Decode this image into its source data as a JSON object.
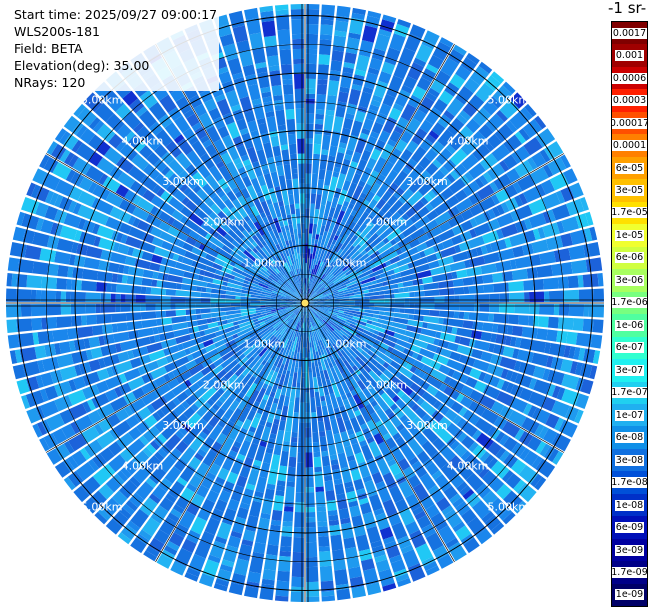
{
  "info": {
    "start_time": "Start time: 2025/09/27 09:00:17",
    "instrument": "WLS200s-181",
    "field": "Field: BETA",
    "elevation": "Elevation(deg): 35.00",
    "nrays": "NRays: 120"
  },
  "colorbar": {
    "unit_fragment": "-1 sr-",
    "labels": [
      "0.0017",
      "0.001",
      "0.0006",
      "0.0003",
      "0.00017",
      "0.0001",
      "6e-05",
      "3e-05",
      "1.7e-05",
      "1e-05",
      "6e-06",
      "3e-06",
      "1.7e-06",
      "1e-06",
      "6e-07",
      "3e-07",
      "1.7e-07",
      "1e-07",
      "6e-08",
      "3e-08",
      "1.7e-08",
      "1e-08",
      "6e-09",
      "3e-09",
      "1.7e-09",
      "1e-09"
    ],
    "colors": [
      "#800000",
      "#a00000",
      "#cc0000",
      "#ff2000",
      "#ff5000",
      "#ff8000",
      "#ffa000",
      "#ffc000",
      "#ffe000",
      "#f0ff30",
      "#d0ff40",
      "#a8ff60",
      "#78ff80",
      "#50ffa0",
      "#30ffd0",
      "#20f0f0",
      "#20d0f0",
      "#20b0f0",
      "#1090e8",
      "#1070e0",
      "#0050d8",
      "#0030c8",
      "#0010b8",
      "#0000a0",
      "#000088",
      "#000068"
    ]
  },
  "chart_data": {
    "type": "heatmap",
    "projection": "polar (PPI)",
    "field": "BETA",
    "elevation_deg": 35.0,
    "n_rays": 120,
    "range_rings_km": [
      1.0,
      2.0,
      3.0,
      4.0,
      5.0
    ],
    "range_labels": [
      "1.00km",
      "2.00km",
      "3.00km",
      "4.00km",
      "5.00km"
    ],
    "max_range_km": 5.2,
    "dominant_value_range": [
      1.7e-08,
      6e-08
    ],
    "notes": "Most gates fall in the 1e-08 to 6e-08 band; scattered higher values near 1.7e-07 concentrated north of the center within 1.5 km."
  }
}
